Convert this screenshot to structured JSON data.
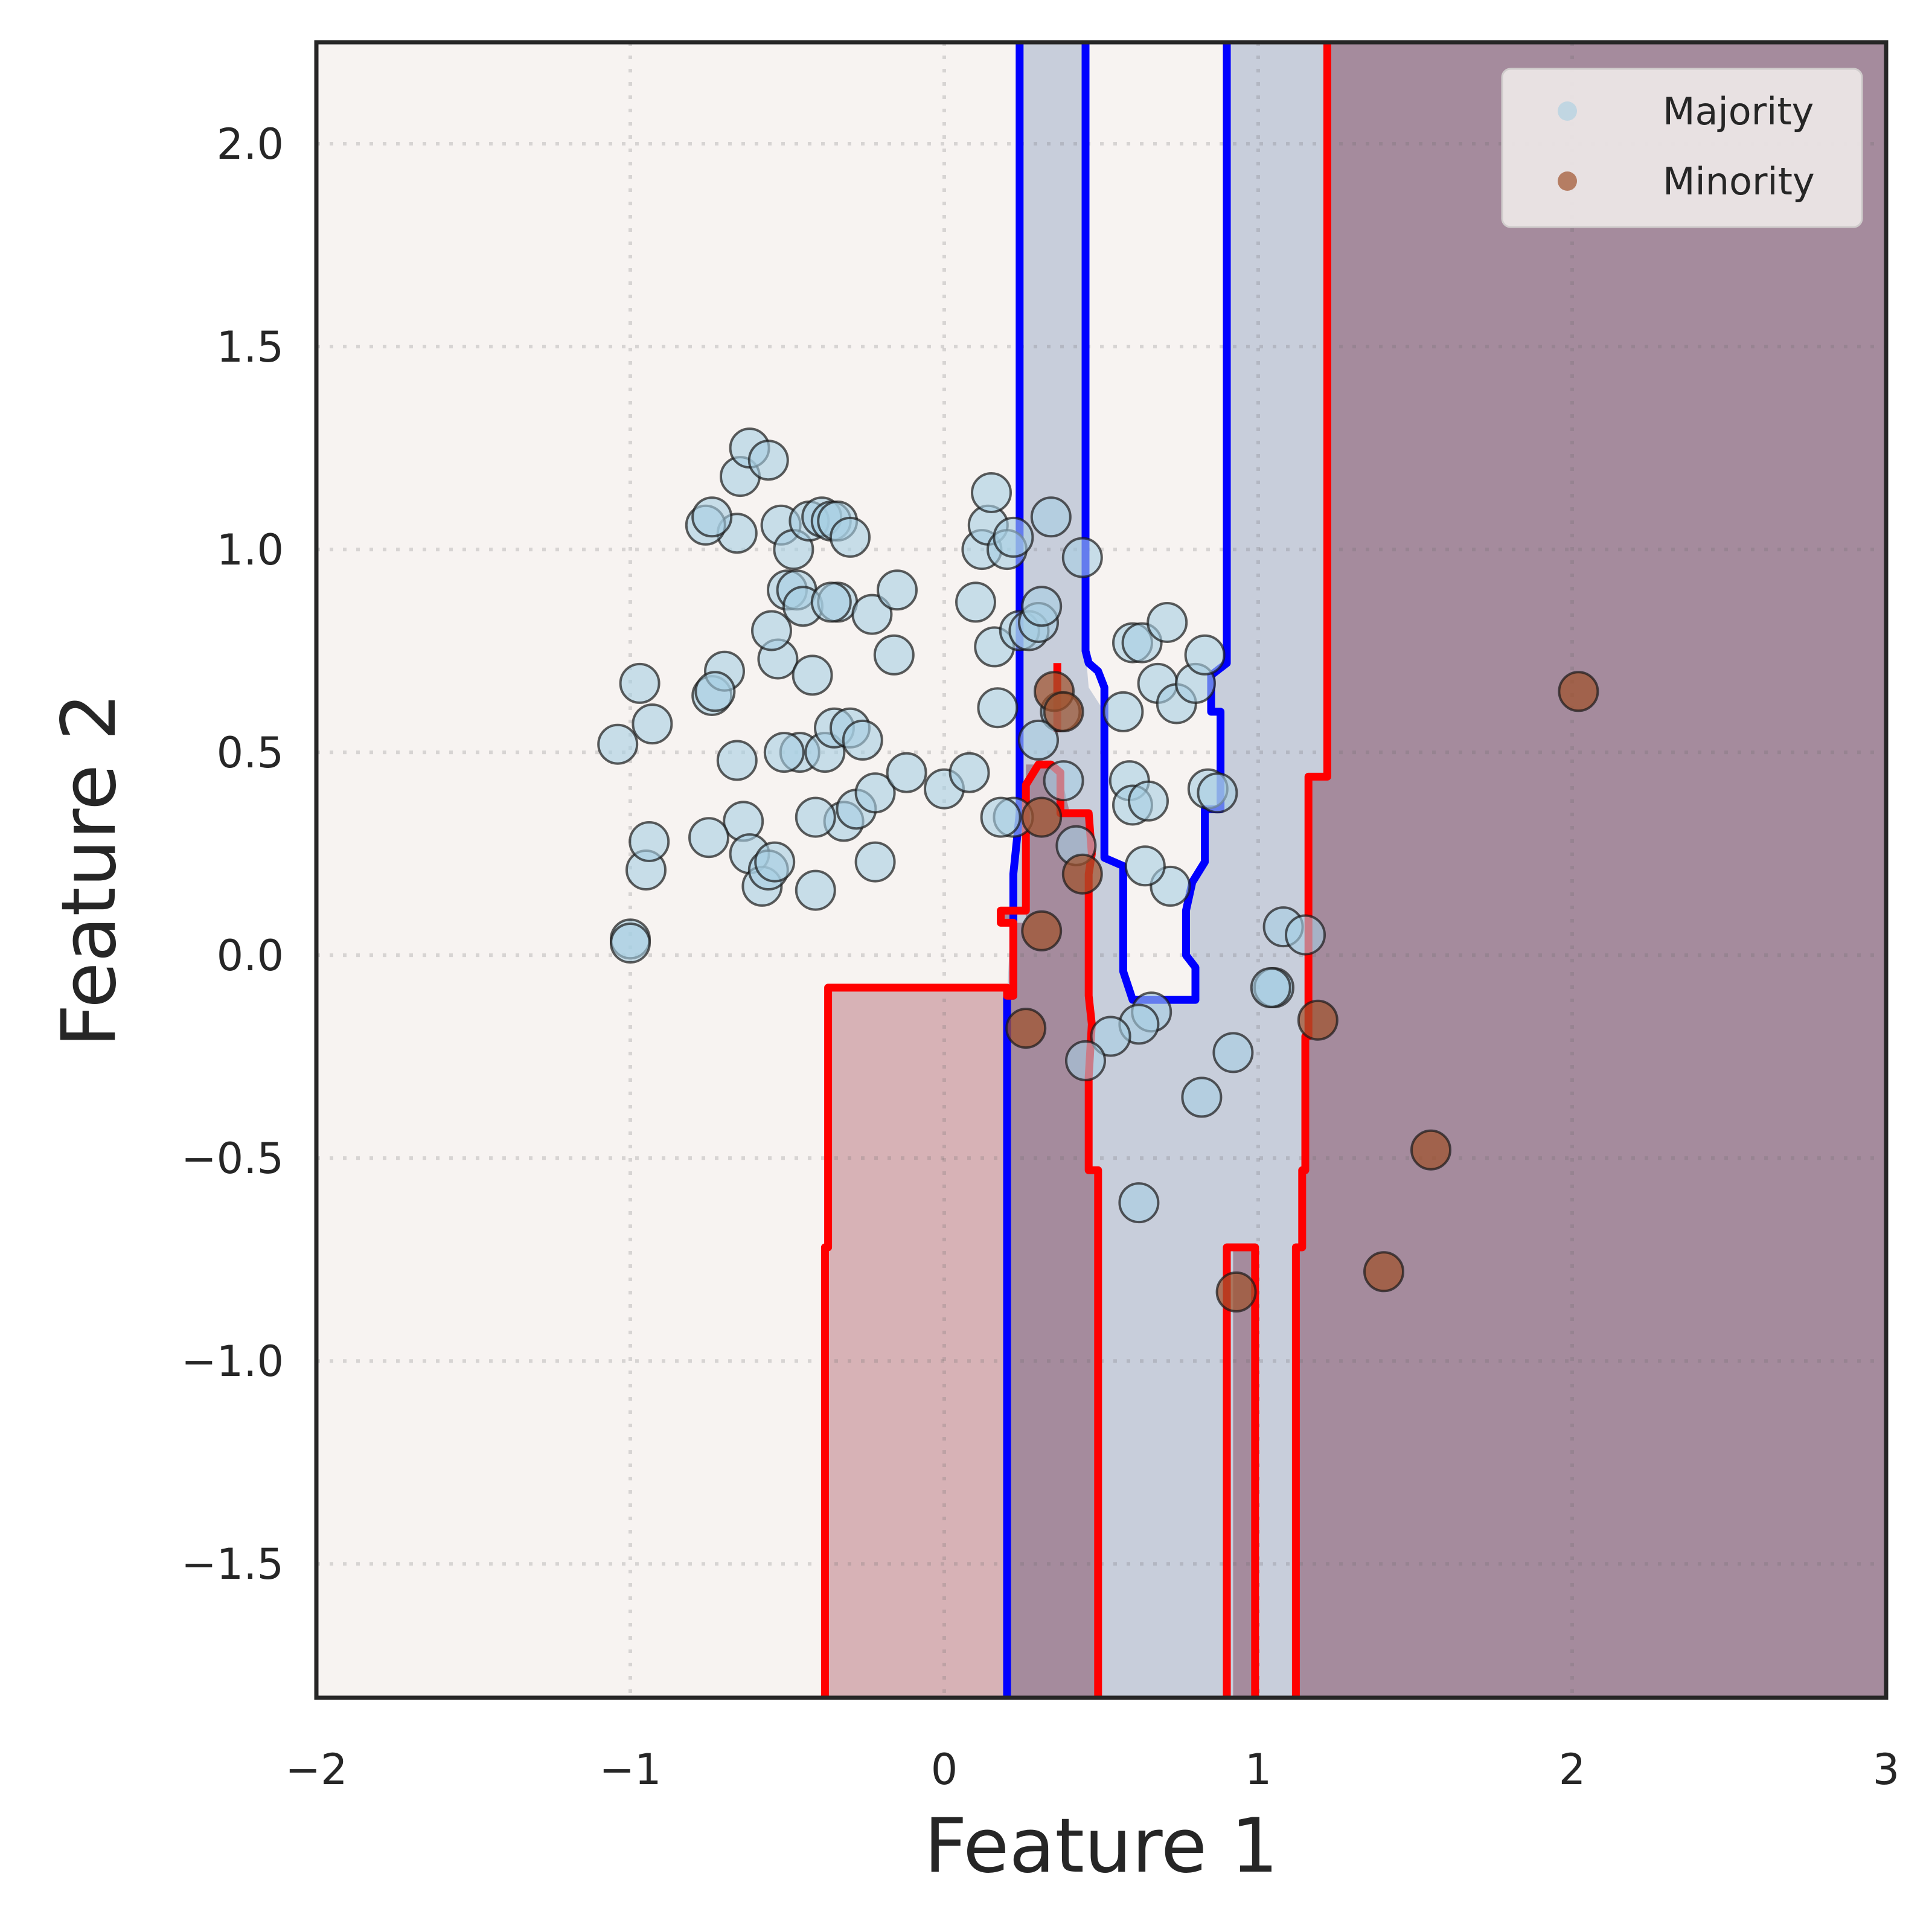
{
  "chart_data": {
    "type": "scatter",
    "title": "",
    "xlabel": "Feature 1",
    "ylabel": "Feature 2",
    "xlim": [
      -2,
      3
    ],
    "ylim": [
      -1.83,
      2.25
    ],
    "xticks": [
      -2,
      -1,
      0,
      1,
      2,
      3
    ],
    "xtick_labels": [
      "−2",
      "−1",
      "0",
      "1",
      "2",
      "3"
    ],
    "yticks": [
      -1.5,
      -1.0,
      -0.5,
      0.0,
      0.5,
      1.0,
      1.5,
      2.0
    ],
    "ytick_labels": [
      "−1.5",
      "−1.0",
      "−0.5",
      "0.0",
      "0.5",
      "1.0",
      "1.5",
      "2.0"
    ],
    "grid": true,
    "legend_position": "top-right",
    "colors": {
      "majority": "#a6cee3",
      "minority": "#a0522d",
      "background": "#f7f3f1",
      "region_mid": "#c8cedb",
      "region_dark": "#a58b9d",
      "region_pink": "#d7b2b6",
      "boundary_blue": "#0000ff",
      "boundary_red": "#ff0000"
    },
    "regions": [
      {
        "kind": "mid",
        "points": [
          [
            0.24,
            2.25
          ],
          [
            1.22,
            2.25
          ],
          [
            1.22,
            0.44
          ],
          [
            1.16,
            0.44
          ],
          [
            1.16,
            -0.2
          ],
          [
            1.15,
            -0.53
          ],
          [
            1.13,
            -1.83
          ],
          [
            0.2,
            -1.83
          ],
          [
            0.2,
            -0.1
          ],
          [
            0.22,
            0.2
          ],
          [
            0.24,
            0.35
          ]
        ]
      },
      {
        "kind": "dark",
        "points": [
          [
            1.22,
            2.25
          ],
          [
            3,
            2.25
          ],
          [
            3,
            -1.83
          ],
          [
            1.13,
            -1.83
          ],
          [
            1.13,
            -0.72
          ],
          [
            1.15,
            -0.72
          ],
          [
            1.15,
            -0.53
          ],
          [
            1.16,
            -0.2
          ],
          [
            1.16,
            0.44
          ],
          [
            1.22,
            0.44
          ]
        ]
      },
      {
        "kind": "dark",
        "points": [
          [
            0.2,
            -1.83
          ],
          [
            0.49,
            -1.83
          ],
          [
            0.49,
            -0.53
          ],
          [
            0.46,
            -0.53
          ],
          [
            0.46,
            -0.17
          ],
          [
            0.46,
            0.25
          ],
          [
            0.47,
            0.35
          ],
          [
            0.4,
            0.35
          ],
          [
            0.37,
            0.45
          ],
          [
            0.3,
            0.47
          ],
          [
            0.26,
            0.47
          ],
          [
            0.26,
            0.08
          ],
          [
            0.18,
            0.08
          ],
          [
            0.18,
            0.11
          ],
          [
            0.22,
            0.11
          ],
          [
            0.22,
            -0.1
          ],
          [
            0.2,
            -0.1
          ]
        ]
      },
      {
        "kind": "dark",
        "points": [
          [
            0.9,
            -1.83
          ],
          [
            0.99,
            -1.83
          ],
          [
            0.99,
            -0.72
          ],
          [
            0.92,
            -0.72
          ],
          [
            0.92,
            -1.83
          ]
        ]
      },
      {
        "kind": "pink",
        "points": [
          [
            -0.38,
            -1.83
          ],
          [
            0.2,
            -1.83
          ],
          [
            0.2,
            -0.08
          ],
          [
            -0.38,
            -0.08
          ]
        ]
      },
      {
        "kind": "light",
        "points": [
          [
            0.45,
            2.25
          ],
          [
            0.9,
            2.25
          ],
          [
            0.9,
            0.72
          ],
          [
            0.85,
            0.69
          ],
          [
            0.85,
            0.6
          ],
          [
            0.88,
            0.6
          ],
          [
            0.88,
            0.36
          ],
          [
            0.83,
            0.36
          ],
          [
            0.83,
            0.23
          ],
          [
            0.79,
            0.18
          ],
          [
            0.77,
            0.11
          ],
          [
            0.77,
            0.0
          ],
          [
            0.8,
            -0.03
          ],
          [
            0.8,
            -0.11
          ],
          [
            0.6,
            -0.11
          ],
          [
            0.57,
            -0.04
          ],
          [
            0.57,
            0.22
          ],
          [
            0.51,
            0.24
          ],
          [
            0.51,
            0.6
          ],
          [
            0.46,
            0.66
          ],
          [
            0.45,
            0.75
          ]
        ]
      }
    ],
    "boundaries": [
      {
        "color": "blue",
        "points": [
          [
            0.24,
            2.25
          ],
          [
            0.24,
            0.35
          ],
          [
            0.22,
            0.2
          ],
          [
            0.22,
            -0.1
          ],
          [
            0.2,
            -0.1
          ],
          [
            0.2,
            -1.83
          ]
        ]
      },
      {
        "color": "blue",
        "points": [
          [
            0.45,
            2.25
          ],
          [
            0.45,
            0.75
          ],
          [
            0.46,
            0.72
          ],
          [
            0.49,
            0.7
          ],
          [
            0.51,
            0.66
          ],
          [
            0.51,
            0.6
          ],
          [
            0.51,
            0.24
          ],
          [
            0.57,
            0.22
          ],
          [
            0.57,
            -0.04
          ],
          [
            0.6,
            -0.11
          ],
          [
            0.8,
            -0.11
          ],
          [
            0.8,
            -0.03
          ],
          [
            0.77,
            0.0
          ],
          [
            0.77,
            0.11
          ],
          [
            0.79,
            0.18
          ],
          [
            0.83,
            0.23
          ],
          [
            0.83,
            0.36
          ],
          [
            0.88,
            0.36
          ],
          [
            0.88,
            0.6
          ],
          [
            0.85,
            0.6
          ],
          [
            0.85,
            0.69
          ],
          [
            0.9,
            0.72
          ],
          [
            0.9,
            2.25
          ]
        ]
      },
      {
        "color": "red",
        "points": [
          [
            -0.38,
            -1.83
          ],
          [
            -0.38,
            -0.72
          ],
          [
            -0.37,
            -0.72
          ],
          [
            -0.37,
            -0.08
          ],
          [
            0.2,
            -0.08
          ],
          [
            0.2,
            -0.1
          ],
          [
            0.22,
            -0.1
          ],
          [
            0.22,
            0.08
          ],
          [
            0.18,
            0.08
          ],
          [
            0.18,
            0.11
          ],
          [
            0.26,
            0.11
          ],
          [
            0.26,
            0.42
          ],
          [
            0.3,
            0.47
          ],
          [
            0.34,
            0.47
          ],
          [
            0.37,
            0.45
          ],
          [
            0.37,
            0.35
          ],
          [
            0.46,
            0.35
          ],
          [
            0.47,
            0.25
          ],
          [
            0.46,
            0.2
          ],
          [
            0.46,
            -0.1
          ],
          [
            0.47,
            -0.17
          ],
          [
            0.46,
            -0.3
          ],
          [
            0.46,
            -0.53
          ],
          [
            0.49,
            -0.53
          ],
          [
            0.49,
            -1.83
          ]
        ]
      },
      {
        "color": "red",
        "points": [
          [
            0.36,
            0.72
          ],
          [
            0.36,
            0.55
          ]
        ]
      },
      {
        "color": "red",
        "points": [
          [
            0.9,
            -1.83
          ],
          [
            0.9,
            -0.72
          ],
          [
            0.99,
            -0.72
          ],
          [
            0.99,
            -1.83
          ]
        ]
      },
      {
        "color": "red",
        "points": [
          [
            1.22,
            2.25
          ],
          [
            1.22,
            0.44
          ],
          [
            1.16,
            0.44
          ],
          [
            1.16,
            -0.2
          ],
          [
            1.15,
            -0.2
          ],
          [
            1.15,
            -0.53
          ],
          [
            1.14,
            -0.53
          ],
          [
            1.14,
            -0.72
          ],
          [
            1.12,
            -0.72
          ],
          [
            1.12,
            -1.83
          ]
        ]
      }
    ],
    "series": [
      {
        "name": "Majority",
        "color": "#a6cee3",
        "points": [
          [
            -1.04,
            0.52
          ],
          [
            -0.97,
            0.67
          ],
          [
            -0.93,
            0.57
          ],
          [
            -0.95,
            0.21
          ],
          [
            -1.0,
            0.04
          ],
          [
            -1.0,
            0.03
          ],
          [
            -0.94,
            0.28
          ],
          [
            -0.74,
            0.64
          ],
          [
            -0.7,
            0.7
          ],
          [
            -0.66,
            0.48
          ],
          [
            -0.64,
            0.33
          ],
          [
            -0.62,
            0.25
          ],
          [
            -0.58,
            0.17
          ],
          [
            -0.56,
            0.21
          ],
          [
            -0.54,
            0.23
          ],
          [
            -0.53,
            0.73
          ],
          [
            -0.55,
            0.8
          ],
          [
            -0.5,
            0.9
          ],
          [
            -0.47,
            0.9
          ],
          [
            -0.45,
            0.86
          ],
          [
            -0.42,
            0.69
          ],
          [
            -0.46,
            0.5
          ],
          [
            -0.51,
            0.5
          ],
          [
            -0.38,
            0.5
          ],
          [
            -0.35,
            0.56
          ],
          [
            -0.3,
            0.56
          ],
          [
            -0.32,
            0.33
          ],
          [
            -0.28,
            0.36
          ],
          [
            -0.26,
            0.53
          ],
          [
            -0.22,
            0.4
          ],
          [
            -0.22,
            0.23
          ],
          [
            -0.41,
            0.16
          ],
          [
            -0.41,
            0.34
          ],
          [
            -0.75,
            0.29
          ],
          [
            -0.73,
            0.65
          ],
          [
            -0.66,
            1.04
          ],
          [
            -0.65,
            1.18
          ],
          [
            -0.62,
            1.25
          ],
          [
            -0.56,
            1.22
          ],
          [
            -0.76,
            1.06
          ],
          [
            -0.74,
            1.08
          ],
          [
            -0.52,
            1.06
          ],
          [
            -0.48,
            1.0
          ],
          [
            -0.43,
            1.07
          ],
          [
            -0.39,
            1.08
          ],
          [
            -0.36,
            1.07
          ],
          [
            -0.34,
            1.07
          ],
          [
            -0.3,
            1.03
          ],
          [
            -0.34,
            0.87
          ],
          [
            -0.36,
            0.87
          ],
          [
            -0.23,
            0.84
          ],
          [
            -0.15,
            0.9
          ],
          [
            -0.16,
            0.74
          ],
          [
            -0.12,
            0.45
          ],
          [
            0.0,
            0.41
          ],
          [
            0.08,
            0.45
          ],
          [
            0.1,
            0.87
          ],
          [
            0.12,
            1.0
          ],
          [
            0.14,
            1.06
          ],
          [
            0.15,
            1.14
          ],
          [
            0.16,
            0.76
          ],
          [
            0.17,
            0.61
          ],
          [
            0.2,
            1.0
          ],
          [
            0.22,
            1.03
          ],
          [
            0.24,
            0.8
          ],
          [
            0.27,
            0.8
          ],
          [
            0.3,
            0.82
          ],
          [
            0.31,
            0.86
          ],
          [
            0.34,
            1.08
          ],
          [
            0.37,
            0.6
          ],
          [
            0.38,
            0.43
          ],
          [
            0.42,
            0.27
          ],
          [
            0.44,
            0.98
          ],
          [
            0.3,
            0.53
          ],
          [
            0.22,
            0.34
          ],
          [
            0.18,
            0.34
          ],
          [
            0.57,
            0.6
          ],
          [
            0.59,
            0.43
          ],
          [
            0.6,
            0.37
          ],
          [
            0.6,
            0.77
          ],
          [
            0.63,
            0.77
          ],
          [
            0.65,
            0.38
          ],
          [
            0.68,
            0.67
          ],
          [
            0.71,
            0.82
          ],
          [
            0.74,
            0.62
          ],
          [
            0.8,
            0.67
          ],
          [
            0.83,
            0.74
          ],
          [
            0.84,
            0.41
          ],
          [
            0.87,
            0.4
          ],
          [
            0.72,
            0.17
          ],
          [
            0.64,
            0.22
          ],
          [
            0.66,
            -0.14
          ],
          [
            0.62,
            -0.17
          ],
          [
            0.53,
            -0.2
          ],
          [
            0.45,
            -0.26
          ],
          [
            0.82,
            -0.35
          ],
          [
            0.92,
            -0.24
          ],
          [
            1.05,
            -0.08
          ],
          [
            1.04,
            -0.08
          ],
          [
            1.08,
            0.07
          ],
          [
            1.15,
            0.05
          ],
          [
            0.62,
            -0.61
          ]
        ]
      },
      {
        "name": "Minority",
        "color": "#a0522d",
        "points": [
          [
            2.02,
            0.65
          ],
          [
            1.55,
            -0.48
          ],
          [
            1.4,
            -0.78
          ],
          [
            1.19,
            -0.16
          ],
          [
            0.93,
            -0.83
          ],
          [
            0.26,
            -0.18
          ],
          [
            0.31,
            0.06
          ],
          [
            0.31,
            0.34
          ],
          [
            0.44,
            0.2
          ],
          [
            0.35,
            0.65
          ],
          [
            0.38,
            0.6
          ]
        ]
      }
    ]
  },
  "legend": {
    "items": [
      {
        "label": "Majority",
        "color": "#a6cee3"
      },
      {
        "label": "Minority",
        "color": "#a0522d"
      }
    ]
  }
}
